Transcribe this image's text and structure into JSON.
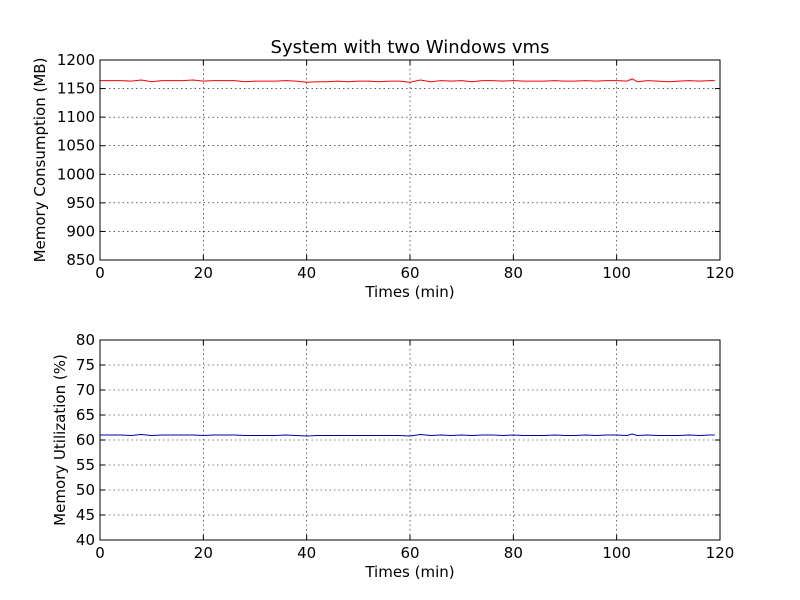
{
  "chart_data": [
    {
      "type": "line",
      "title": "System with two Windows vms",
      "xlabel": "Times (min)",
      "ylabel": "Memory Consumption (MB)",
      "xlim": [
        0,
        120
      ],
      "ylim": [
        850,
        1200
      ],
      "xticks": [
        0,
        20,
        40,
        60,
        80,
        100,
        120
      ],
      "yticks": [
        850,
        900,
        950,
        1000,
        1050,
        1100,
        1150,
        1200
      ],
      "grid": true,
      "series": [
        {
          "color": "#ff0000",
          "x": [
            0,
            2,
            4,
            6,
            8,
            10,
            12,
            14,
            16,
            18,
            20,
            22,
            24,
            26,
            28,
            30,
            32,
            34,
            36,
            38,
            40,
            42,
            44,
            46,
            48,
            50,
            52,
            54,
            56,
            58,
            60,
            62,
            64,
            66,
            68,
            70,
            72,
            74,
            76,
            78,
            80,
            82,
            84,
            86,
            88,
            90,
            92,
            94,
            96,
            98,
            100,
            102,
            103,
            104,
            106,
            108,
            110,
            112,
            114,
            116,
            118,
            119
          ],
          "values": [
            1164,
            1164,
            1164,
            1163,
            1165,
            1162,
            1164,
            1164,
            1164,
            1165,
            1163,
            1164,
            1164,
            1164,
            1162,
            1163,
            1163,
            1163,
            1164,
            1163,
            1161,
            1162,
            1162,
            1163,
            1162,
            1163,
            1163,
            1162,
            1163,
            1163,
            1161,
            1165,
            1162,
            1164,
            1163,
            1164,
            1162,
            1164,
            1164,
            1163,
            1164,
            1163,
            1163,
            1163,
            1164,
            1163,
            1163,
            1164,
            1163,
            1164,
            1164,
            1163,
            1167,
            1162,
            1164,
            1163,
            1162,
            1163,
            1164,
            1163,
            1164,
            1164
          ]
        }
      ]
    },
    {
      "type": "line",
      "title": "",
      "xlabel": "Times (min)",
      "ylabel": "Memory Utilization (%)",
      "xlim": [
        0,
        120
      ],
      "ylim": [
        40,
        80
      ],
      "xticks": [
        0,
        20,
        40,
        60,
        80,
        100,
        120
      ],
      "yticks": [
        40,
        45,
        50,
        55,
        60,
        65,
        70,
        75,
        80
      ],
      "grid": true,
      "series": [
        {
          "color": "#0000aa",
          "x": [
            0,
            2,
            4,
            6,
            8,
            10,
            12,
            14,
            16,
            18,
            20,
            22,
            24,
            26,
            28,
            30,
            32,
            34,
            36,
            38,
            40,
            42,
            44,
            46,
            48,
            50,
            52,
            54,
            56,
            58,
            60,
            62,
            64,
            66,
            68,
            70,
            72,
            74,
            76,
            78,
            80,
            82,
            84,
            86,
            88,
            90,
            92,
            94,
            96,
            98,
            100,
            102,
            103,
            104,
            106,
            108,
            110,
            112,
            114,
            116,
            118,
            119
          ],
          "values": [
            61.0,
            61.0,
            61.0,
            60.9,
            61.1,
            60.9,
            61.0,
            61.0,
            61.0,
            61.0,
            60.9,
            61.0,
            61.0,
            61.0,
            60.9,
            60.9,
            60.9,
            60.9,
            61.0,
            60.9,
            60.8,
            60.9,
            60.9,
            60.9,
            60.9,
            60.9,
            60.9,
            60.9,
            60.9,
            60.9,
            60.8,
            61.1,
            60.9,
            61.0,
            60.9,
            61.0,
            60.9,
            61.0,
            61.0,
            60.9,
            61.0,
            60.9,
            60.9,
            60.9,
            61.0,
            60.9,
            60.9,
            61.0,
            60.9,
            61.0,
            61.0,
            60.9,
            61.2,
            60.9,
            61.0,
            60.9,
            60.9,
            60.9,
            61.0,
            60.9,
            61.0,
            61.0
          ]
        }
      ]
    }
  ]
}
